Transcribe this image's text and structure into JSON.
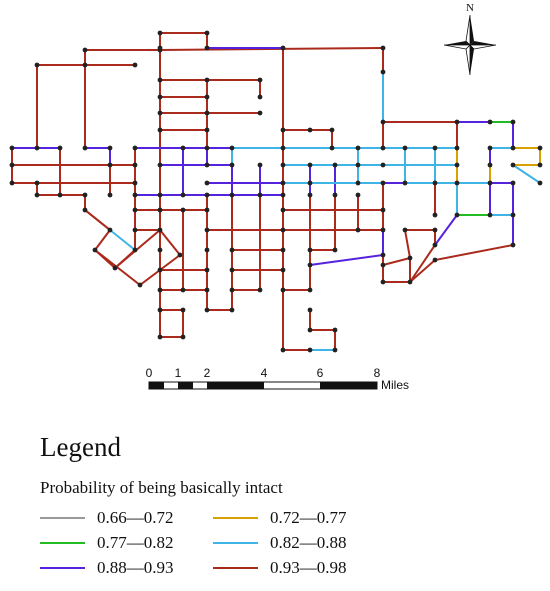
{
  "compass": {
    "label": "N"
  },
  "scale_bar": {
    "ticks": [
      "0",
      "1",
      "2",
      "4",
      "6",
      "8"
    ],
    "unit": "Miles"
  },
  "legend": {
    "title": "Legend",
    "subtitle": "Probability of being basically intact",
    "items": [
      {
        "label": "0.66—0.72",
        "color": "#9a9a9a"
      },
      {
        "label": "0.72—0.77",
        "color": "#d8a000"
      },
      {
        "label": "0.77—0.82",
        "color": "#22bb22"
      },
      {
        "label": "0.82—0.88",
        "color": "#3fb4e6"
      },
      {
        "label": "0.88—0.93",
        "color": "#5522dd"
      },
      {
        "label": "0.93—0.98",
        "color": "#aa2a1c"
      }
    ]
  },
  "colors": {
    "network_main": "#aa2a1c",
    "network_purple": "#5522dd",
    "network_cyan": "#3fb4e6",
    "network_green": "#22bb22",
    "network_orange": "#d8a000",
    "node": "#222222"
  }
}
